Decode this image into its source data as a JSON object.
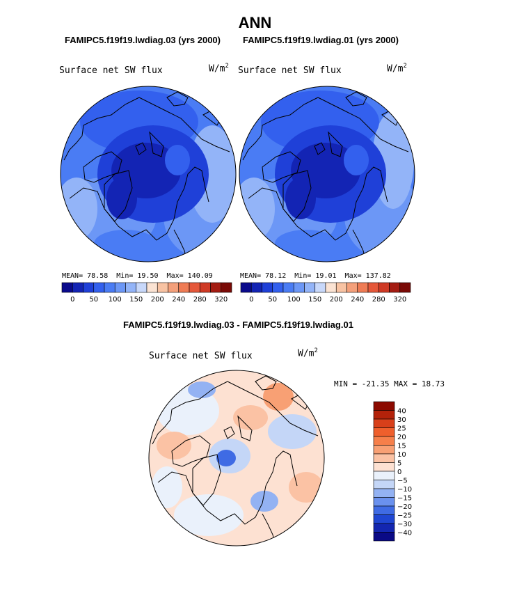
{
  "title": "ANN",
  "panels": [
    {
      "case": "FAMIPC5.f19f19.lwdiag.03 (yrs 2000)",
      "variable": "Surface net SW flux",
      "units_base": "W/m",
      "units_exp": "2",
      "mean_label": "MEAN=",
      "mean": "78.58",
      "min_label": "Min=",
      "min": "19.50",
      "max_label": "Max=",
      "max": "140.09"
    },
    {
      "case": "FAMIPC5.f19f19.lwdiag.01 (yrs 2000)",
      "variable": "Surface net SW flux",
      "units_base": "W/m",
      "units_exp": "2",
      "mean_label": "MEAN=",
      "mean": "78.12",
      "min_label": "Min=",
      "min": "19.01",
      "max_label": "Max=",
      "max": "137.82"
    }
  ],
  "difference": {
    "title": "FAMIPC5.f19f19.lwdiag.03 - FAMIPC5.f19f19.lwdiag.01",
    "variable": "Surface net SW flux",
    "units_base": "W/m",
    "units_exp": "2",
    "stats_text": "MIN = -21.35 MAX =  18.73"
  },
  "chart_data": [
    {
      "type": "heatmap",
      "projection": "north polar stereographic",
      "title": "Surface net SW flux",
      "case": "FAMIPC5.f19f19.lwdiag.03 (yrs 2000)",
      "units": "W/m2",
      "mean": 78.58,
      "min": 19.5,
      "max": 140.09,
      "colorbar_levels": [
        0,
        25,
        50,
        75,
        100,
        125,
        150,
        175,
        200,
        220,
        240,
        260,
        280,
        300,
        320
      ],
      "colorbar_tick_labels": [
        "0",
        "50",
        "100",
        "150",
        "200",
        "240",
        "280",
        "320"
      ],
      "colors": [
        "#0a0a8c",
        "#1324b4",
        "#1f40d8",
        "#3360ee",
        "#4a7cf4",
        "#6c97f6",
        "#93b4f8",
        "#c8d8fa",
        "#fbe3d3",
        "#f8c3a3",
        "#f4a07b",
        "#ef7c55",
        "#e5583a",
        "#cf3a25",
        "#a41c12",
        "#7a0a06"
      ]
    },
    {
      "type": "heatmap",
      "projection": "north polar stereographic",
      "title": "Surface net SW flux",
      "case": "FAMIPC5.f19f19.lwdiag.01 (yrs 2000)",
      "units": "W/m2",
      "mean": 78.12,
      "min": 19.01,
      "max": 137.82,
      "colorbar_levels": [
        0,
        25,
        50,
        75,
        100,
        125,
        150,
        175,
        200,
        220,
        240,
        260,
        280,
        300,
        320
      ],
      "colorbar_tick_labels": [
        "0",
        "50",
        "100",
        "150",
        "200",
        "240",
        "280",
        "320"
      ],
      "colors": [
        "#0a0a8c",
        "#1324b4",
        "#1f40d8",
        "#3360ee",
        "#4a7cf4",
        "#6c97f6",
        "#93b4f8",
        "#c8d8fa",
        "#fbe3d3",
        "#f8c3a3",
        "#f4a07b",
        "#ef7c55",
        "#e5583a",
        "#cf3a25",
        "#a41c12",
        "#7a0a06"
      ]
    },
    {
      "type": "heatmap",
      "projection": "north polar stereographic",
      "title": "Surface net SW flux",
      "case": "FAMIPC5.f19f19.lwdiag.03 - FAMIPC5.f19f19.lwdiag.01",
      "units": "W/m2",
      "min": -21.35,
      "max": 18.73,
      "colorbar_labels": [
        "40",
        "30",
        "25",
        "20",
        "15",
        "10",
        "5",
        "0",
        "-5",
        "-10",
        "-15",
        "-20",
        "-25",
        "-30",
        "-40"
      ],
      "colors": [
        "#8c0a00",
        "#b3220a",
        "#d8401a",
        "#ef5f2c",
        "#f67f4a",
        "#f8a074",
        "#fbc2a4",
        "#fde1d2",
        "#eaf1fb",
        "#c4d6f7",
        "#93b2f3",
        "#6a91ee",
        "#3f6be4",
        "#1f46d2",
        "#1326b0",
        "#0a0a86"
      ]
    }
  ]
}
